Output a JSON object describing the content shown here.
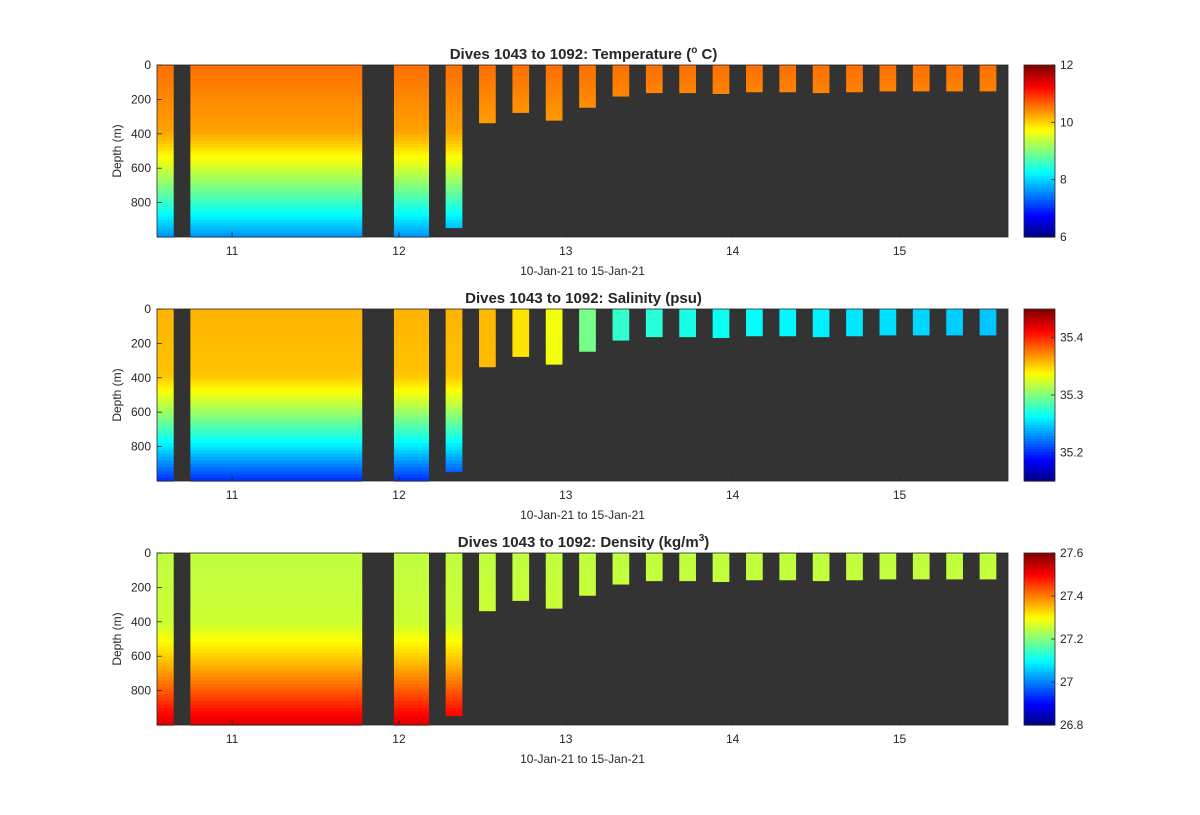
{
  "chart_data": [
    {
      "type": "heatmap",
      "variable": "temperature",
      "title": "Dives 1043 to 1092: Temperature (",
      "title_sup": "o",
      "title_tail": " C)",
      "xlabel": "10-Jan-21 to 15-Jan-21",
      "ylabel": "Depth (m)",
      "xlim": [
        10.55,
        15.65
      ],
      "ylim": [
        0,
        1000
      ],
      "y_reversed": true,
      "xticks": [
        "11",
        "12",
        "13",
        "14",
        "15"
      ],
      "yticks": [
        "0",
        "200",
        "400",
        "600",
        "800"
      ],
      "colorbar": {
        "colormap": "jet",
        "clim": [
          6,
          12
        ],
        "ticks": [
          "6",
          "8",
          "10",
          "12"
        ]
      },
      "background_color": "#333333",
      "profile_model": {
        "surface": 10.6,
        "mid_depth": 380,
        "mid": 10.3,
        "deep": 7.6
      },
      "profiles": [
        {
          "x_start": 10.55,
          "x_end": 10.65,
          "max_depth": 1000
        },
        {
          "x_start": 10.75,
          "x_end": 11.78,
          "max_depth": 1000
        },
        {
          "x_start": 11.97,
          "x_end": 12.18,
          "max_depth": 1000
        },
        {
          "x_start": 12.28,
          "x_end": 12.38,
          "max_depth": 945
        },
        {
          "x_start": 12.48,
          "x_end": 12.58,
          "max_depth": 335
        },
        {
          "x_start": 12.68,
          "x_end": 12.78,
          "max_depth": 275
        },
        {
          "x_start": 12.88,
          "x_end": 12.98,
          "max_depth": 320
        },
        {
          "x_start": 13.08,
          "x_end": 13.18,
          "max_depth": 245
        },
        {
          "x_start": 13.28,
          "x_end": 13.38,
          "max_depth": 180
        },
        {
          "x_start": 13.48,
          "x_end": 13.58,
          "max_depth": 160
        },
        {
          "x_start": 13.68,
          "x_end": 13.78,
          "max_depth": 160
        },
        {
          "x_start": 13.88,
          "x_end": 13.98,
          "max_depth": 165
        },
        {
          "x_start": 14.08,
          "x_end": 14.18,
          "max_depth": 155
        },
        {
          "x_start": 14.28,
          "x_end": 14.38,
          "max_depth": 155
        },
        {
          "x_start": 14.48,
          "x_end": 14.58,
          "max_depth": 160
        },
        {
          "x_start": 14.68,
          "x_end": 14.78,
          "max_depth": 155
        },
        {
          "x_start": 14.88,
          "x_end": 14.98,
          "max_depth": 150
        },
        {
          "x_start": 15.08,
          "x_end": 15.18,
          "max_depth": 150
        },
        {
          "x_start": 15.28,
          "x_end": 15.38,
          "max_depth": 150
        },
        {
          "x_start": 15.48,
          "x_end": 15.58,
          "max_depth": 150
        }
      ]
    },
    {
      "type": "heatmap",
      "variable": "salinity",
      "title": "Dives 1043 to 1092: Salinity (psu)",
      "title_sup": "",
      "title_tail": "",
      "xlabel": "10-Jan-21 to 15-Jan-21",
      "ylabel": "Depth (m)",
      "xlim": [
        10.55,
        15.65
      ],
      "ylim": [
        0,
        1000
      ],
      "y_reversed": true,
      "xticks": [
        "11",
        "12",
        "13",
        "14",
        "15"
      ],
      "yticks": [
        "0",
        "200",
        "400",
        "600",
        "800"
      ],
      "colorbar": {
        "colormap": "jet",
        "clim": [
          35.15,
          35.45
        ],
        "ticks": [
          "35.2",
          "35.3",
          "35.4"
        ]
      },
      "background_color": "#333333",
      "profile_model": {
        "surface": 35.36,
        "mid_depth": 380,
        "mid": 35.355,
        "deep": 35.2
      },
      "surface_trend": [
        {
          "x": 12.5,
          "value": 35.36
        },
        {
          "x": 13.0,
          "value": 35.33
        },
        {
          "x": 13.2,
          "value": 35.28
        },
        {
          "x": 14.0,
          "value": 35.265
        },
        {
          "x": 15.6,
          "value": 35.245
        }
      ],
      "profiles": [
        {
          "x_start": 10.55,
          "x_end": 10.65,
          "max_depth": 1000
        },
        {
          "x_start": 10.75,
          "x_end": 11.78,
          "max_depth": 1000
        },
        {
          "x_start": 11.97,
          "x_end": 12.18,
          "max_depth": 1000
        },
        {
          "x_start": 12.28,
          "x_end": 12.38,
          "max_depth": 945
        },
        {
          "x_start": 12.48,
          "x_end": 12.58,
          "max_depth": 335
        },
        {
          "x_start": 12.68,
          "x_end": 12.78,
          "max_depth": 275
        },
        {
          "x_start": 12.88,
          "x_end": 12.98,
          "max_depth": 320
        },
        {
          "x_start": 13.08,
          "x_end": 13.18,
          "max_depth": 245
        },
        {
          "x_start": 13.28,
          "x_end": 13.38,
          "max_depth": 180
        },
        {
          "x_start": 13.48,
          "x_end": 13.58,
          "max_depth": 160
        },
        {
          "x_start": 13.68,
          "x_end": 13.78,
          "max_depth": 160
        },
        {
          "x_start": 13.88,
          "x_end": 13.98,
          "max_depth": 165
        },
        {
          "x_start": 14.08,
          "x_end": 14.18,
          "max_depth": 155
        },
        {
          "x_start": 14.28,
          "x_end": 14.38,
          "max_depth": 155
        },
        {
          "x_start": 14.48,
          "x_end": 14.58,
          "max_depth": 160
        },
        {
          "x_start": 14.68,
          "x_end": 14.78,
          "max_depth": 155
        },
        {
          "x_start": 14.88,
          "x_end": 14.98,
          "max_depth": 150
        },
        {
          "x_start": 15.08,
          "x_end": 15.18,
          "max_depth": 150
        },
        {
          "x_start": 15.28,
          "x_end": 15.38,
          "max_depth": 150
        },
        {
          "x_start": 15.48,
          "x_end": 15.58,
          "max_depth": 150
        }
      ]
    },
    {
      "type": "heatmap",
      "variable": "density",
      "title": "Dives 1043 to 1092: Density (kg/m",
      "title_sup": "3",
      "title_tail": ")",
      "xlabel": "10-Jan-21 to 15-Jan-21",
      "ylabel": "Depth (m)",
      "xlim": [
        10.55,
        15.65
      ],
      "ylim": [
        0,
        1000
      ],
      "y_reversed": true,
      "xticks": [
        "11",
        "12",
        "13",
        "14",
        "15"
      ],
      "yticks": [
        "0",
        "200",
        "400",
        "600",
        "800"
      ],
      "colorbar": {
        "colormap": "jet",
        "clim": [
          26.8,
          27.6
        ],
        "ticks": [
          "26.8",
          "27",
          "27.2",
          "27.4",
          "27.6"
        ]
      },
      "background_color": "#333333",
      "profile_model": {
        "surface": 27.25,
        "mid_depth": 400,
        "mid": 27.26,
        "deep": 27.53
      },
      "profiles": [
        {
          "x_start": 10.55,
          "x_end": 10.65,
          "max_depth": 1000
        },
        {
          "x_start": 10.75,
          "x_end": 11.78,
          "max_depth": 1000
        },
        {
          "x_start": 11.97,
          "x_end": 12.18,
          "max_depth": 1000
        },
        {
          "x_start": 12.28,
          "x_end": 12.38,
          "max_depth": 945
        },
        {
          "x_start": 12.48,
          "x_end": 12.58,
          "max_depth": 335
        },
        {
          "x_start": 12.68,
          "x_end": 12.78,
          "max_depth": 275
        },
        {
          "x_start": 12.88,
          "x_end": 12.98,
          "max_depth": 320
        },
        {
          "x_start": 13.08,
          "x_end": 13.18,
          "max_depth": 245
        },
        {
          "x_start": 13.28,
          "x_end": 13.38,
          "max_depth": 180
        },
        {
          "x_start": 13.48,
          "x_end": 13.58,
          "max_depth": 160
        },
        {
          "x_start": 13.68,
          "x_end": 13.78,
          "max_depth": 160
        },
        {
          "x_start": 13.88,
          "x_end": 13.98,
          "max_depth": 165
        },
        {
          "x_start": 14.08,
          "x_end": 14.18,
          "max_depth": 155
        },
        {
          "x_start": 14.28,
          "x_end": 14.38,
          "max_depth": 155
        },
        {
          "x_start": 14.48,
          "x_end": 14.58,
          "max_depth": 160
        },
        {
          "x_start": 14.68,
          "x_end": 14.78,
          "max_depth": 155
        },
        {
          "x_start": 14.88,
          "x_end": 14.98,
          "max_depth": 150
        },
        {
          "x_start": 15.08,
          "x_end": 15.18,
          "max_depth": 150
        },
        {
          "x_start": 15.28,
          "x_end": 15.38,
          "max_depth": 150
        },
        {
          "x_start": 15.48,
          "x_end": 15.58,
          "max_depth": 150
        }
      ]
    }
  ]
}
